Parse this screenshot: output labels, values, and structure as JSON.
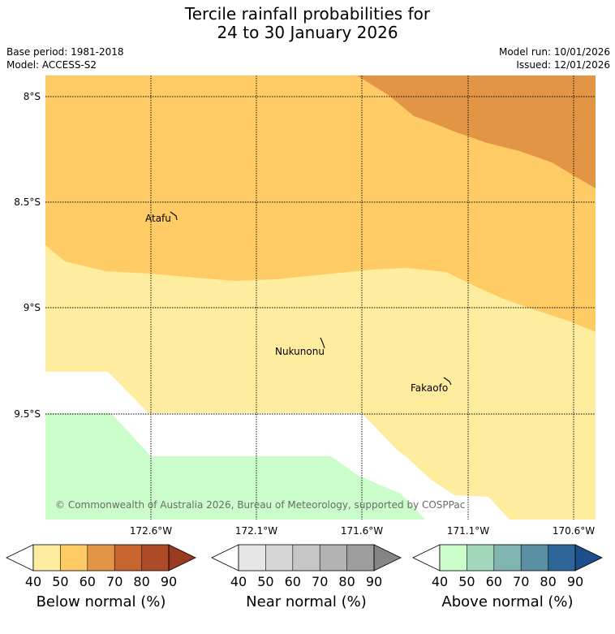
{
  "header": {
    "title_line1": "Tercile rainfall probabilities for",
    "title_line2": "24 to 30 January 2026",
    "base_period": "Base period: 1981-2018",
    "model": "Model: ACCESS-S2",
    "model_run": "Model run: 10/01/2026",
    "issued": "Issued: 12/01/2026"
  },
  "map": {
    "lat_labels": [
      "8°S",
      "8.5°S",
      "9°S",
      "9.5°S"
    ],
    "lon_labels": [
      "172.6°W",
      "172.1°W",
      "171.6°W",
      "171.1°W",
      "170.6°W"
    ],
    "places": [
      "Atafu",
      "Nukunonu",
      "Fakaofo"
    ],
    "copyright": "© Commonwealth of Australia 2026, Bureau of Meteorology, supported by COSPPac",
    "colors": {
      "below_50": "#FEEC9F",
      "below_60": "#FECB65",
      "below_70": "#E19545",
      "above_50": "#CAFDCA",
      "no_data": "#FFFFFF"
    }
  },
  "legends": [
    {
      "label": "Below normal (%)",
      "ticks": [
        "40",
        "50",
        "60",
        "70",
        "80",
        "90"
      ],
      "colors": [
        "#FFFFFF",
        "#FEEC9F",
        "#FECB65",
        "#E19545",
        "#C8642F",
        "#AD4A28",
        "#9A3A20"
      ]
    },
    {
      "label": "Near normal (%)",
      "ticks": [
        "40",
        "50",
        "60",
        "70",
        "80",
        "90"
      ],
      "colors": [
        "#FFFFFF",
        "#E6E6E6",
        "#D6D6D6",
        "#C6C6C6",
        "#B3B3B3",
        "#9E9E9E",
        "#858585"
      ]
    },
    {
      "label": "Above normal (%)",
      "ticks": [
        "40",
        "50",
        "60",
        "70",
        "80",
        "90"
      ],
      "colors": [
        "#FFFFFF",
        "#CAFDCA",
        "#A4D8BD",
        "#7FB4B0",
        "#5A90A2",
        "#2F6698",
        "#1C4E8A"
      ]
    }
  ]
}
